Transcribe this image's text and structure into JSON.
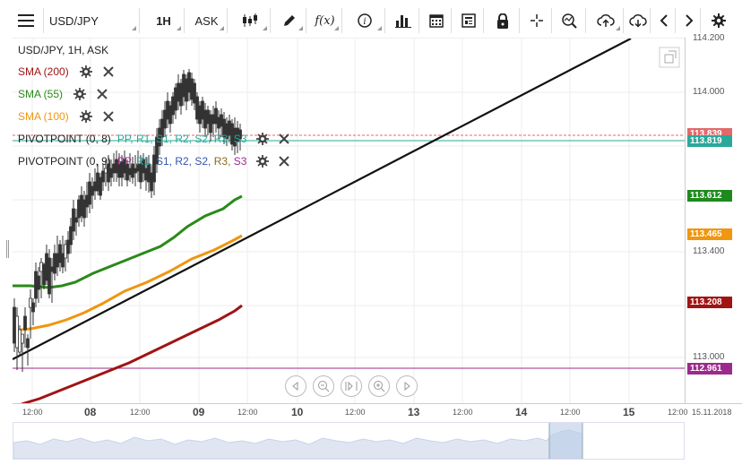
{
  "toolbar": {
    "symbol": "USD/JPY",
    "timeframe": "1H",
    "price_type": "ASK"
  },
  "legend": {
    "title": "USD/JPY, 1H, ASK",
    "sma200": "SMA (200)",
    "sma55": "SMA (55)",
    "sma100": "SMA (100)",
    "pivot1_name": "PIVOTPOINT (0, 8)",
    "pivot2_name": "PIVOTPOINT (0, 9)",
    "pivot_levels": [
      "PP,",
      "R1,",
      "S1,",
      "R2,",
      "S2,",
      "R3,",
      "S3"
    ]
  },
  "yaxis": {
    "labels": [
      "114.200",
      "114.000",
      "113.400",
      "113.000"
    ],
    "tags": [
      {
        "text": "113.839",
        "color": "#e06a6a"
      },
      {
        "text": "113.819",
        "color": "#2aa89a"
      },
      {
        "text": "113.612",
        "color": "#1e8a1e"
      },
      {
        "text": "113.465",
        "color": "#f0960f"
      },
      {
        "text": "113.208",
        "color": "#a01414"
      },
      {
        "text": "112.961",
        "color": "#9c2a8c"
      }
    ]
  },
  "xaxis": {
    "labels": [
      "12:00",
      "08",
      "12:00",
      "09",
      "12:00",
      "10",
      "12:00",
      "13",
      "12:00",
      "14",
      "12:00",
      "15",
      "12:00",
      "15.11.2018"
    ]
  },
  "colors": {
    "sma200": "#a01414",
    "sma55": "#2a8a1a",
    "sma100": "#f0960f",
    "pivot1": "#2aa89a",
    "pivot2": "#9c2a8c",
    "trendline": "#111111"
  }
}
